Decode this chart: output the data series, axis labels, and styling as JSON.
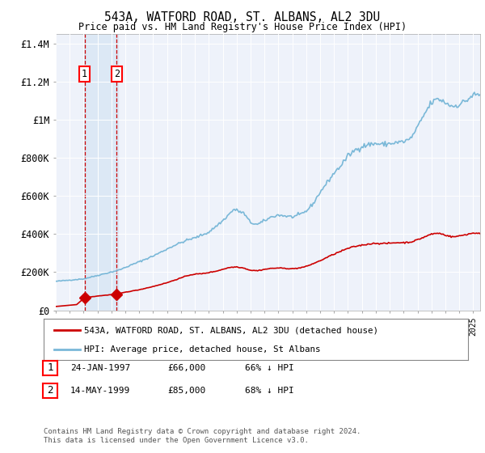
{
  "title": "543A, WATFORD ROAD, ST. ALBANS, AL2 3DU",
  "subtitle": "Price paid vs. HM Land Registry's House Price Index (HPI)",
  "sale1_date": 1997.07,
  "sale1_price": 66000,
  "sale2_date": 1999.37,
  "sale2_price": 85000,
  "xlim": [
    1995.0,
    2025.5
  ],
  "ylim": [
    0,
    1450000
  ],
  "yticks": [
    0,
    200000,
    400000,
    600000,
    800000,
    1000000,
    1200000,
    1400000
  ],
  "ytick_labels": [
    "£0",
    "£200K",
    "£400K",
    "£600K",
    "£800K",
    "£1M",
    "£1.2M",
    "£1.4M"
  ],
  "hpi_color": "#7ab8d8",
  "red_color": "#cc0000",
  "bg_color": "#eef2fa",
  "highlight_rect_color": "#dce8f5",
  "dashed_color": "#cc0000",
  "legend_label_red": "543A, WATFORD ROAD, ST. ALBANS, AL2 3DU (detached house)",
  "legend_label_blue": "HPI: Average price, detached house, St Albans",
  "table_rows": [
    {
      "num": "1",
      "date": "24-JAN-1997",
      "price": "£66,000",
      "pct": "66% ↓ HPI"
    },
    {
      "num": "2",
      "date": "14-MAY-1999",
      "price": "£85,000",
      "pct": "68% ↓ HPI"
    }
  ],
  "footnote": "Contains HM Land Registry data © Crown copyright and database right 2024.\nThis data is licensed under the Open Government Licence v3.0."
}
